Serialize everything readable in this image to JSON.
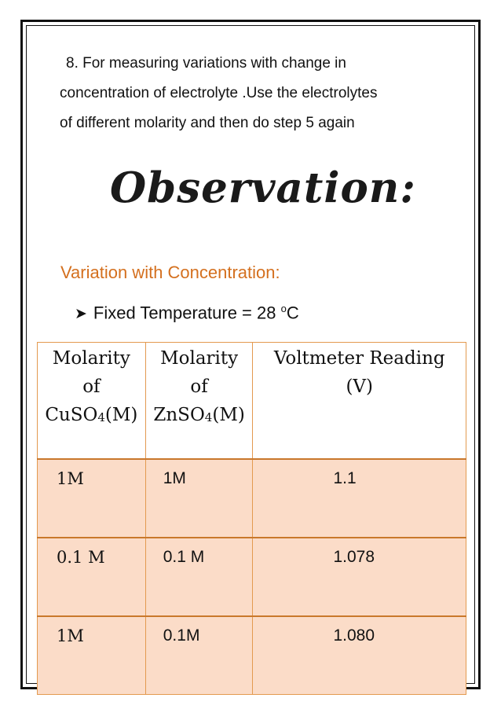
{
  "intro": {
    "line1": "8. For measuring variations with change in",
    "line2": "concentration of electrolyte .Use the electrolytes",
    "line3": "of different molarity and then do step 5 again"
  },
  "heading": "Observation:",
  "subheading": "Variation with Concentration:",
  "fixed": {
    "text": "Fixed Temperature = 28",
    "unit_sup": "o",
    "unit": "C"
  },
  "table": {
    "headers": [
      {
        "line1": "Molarity",
        "line2": "of",
        "line3a": "CuSO",
        "sub": "4",
        "line3b": "(M)"
      },
      {
        "line1": "Molarity",
        "line2": "of",
        "line3a": "ZnSO",
        "sub": "4",
        "line3b": "(M)"
      },
      {
        "line1": "Voltmeter Reading",
        "line2": "(V)"
      }
    ],
    "rows": [
      {
        "cuso4": "1M",
        "znso4": "1M",
        "voltage": "1.1"
      },
      {
        "cuso4": "0.1 M",
        "znso4": "0.1 M",
        "voltage": "1.078"
      },
      {
        "cuso4": "1M",
        "znso4": "0.1M",
        "voltage": "1.080"
      }
    ]
  },
  "colors": {
    "accent": "#d4701f",
    "row_fill": "#fbdcc8",
    "border": "#e39a50"
  }
}
